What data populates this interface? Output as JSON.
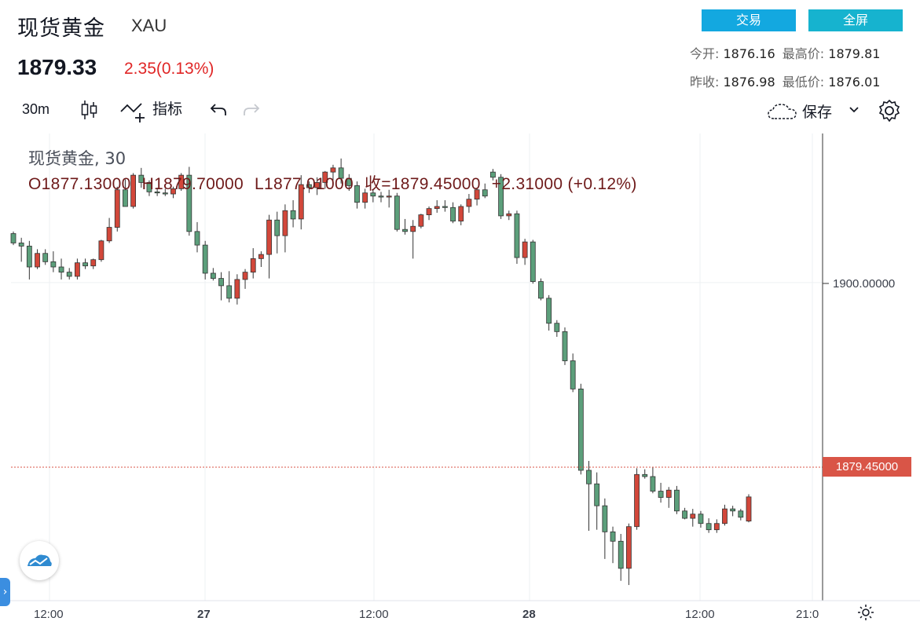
{
  "header": {
    "title": "现货黄金",
    "symbol": "XAU",
    "price": "1879.33",
    "change": "2.35(0.13%)",
    "trade_button": "交易",
    "fullscreen_button": "全屏",
    "open_label": "今开:",
    "open_value": "1876.16",
    "high_label": "最高价:",
    "high_value": "1879.81",
    "prev_close_label": "昨收:",
    "prev_close_value": "1876.98",
    "low_label": "最低价:",
    "low_value": "1876.01"
  },
  "toolbar": {
    "interval": "30m",
    "indicators_label": "指标",
    "save_label": "保存",
    "icons": [
      "candles-icon",
      "indicators-icon",
      "undo-icon",
      "redo-icon",
      "cloud-icon",
      "chevron-down-icon",
      "gear-icon"
    ]
  },
  "legend": {
    "series_label": "现货黄金, 30",
    "open": "O1877.13000",
    "high": "H1879.70000",
    "low": "L1877.01000",
    "close": "收=1879.45000",
    "change": "+2.31000 (+0.12%)"
  },
  "colors": {
    "up": "#d2473a",
    "down": "#5c9f7b",
    "accent": "#13a8e0",
    "last_price": "#d95547"
  },
  "chart_data": {
    "type": "candlestick",
    "y_tick": "1900.00000",
    "y_tick_value": 1900,
    "last_price_label": "1879.45000",
    "last_price": 1879.45,
    "ylim": [
      1869.5,
      1914.3
    ],
    "x_ticks": [
      "12:00",
      "27",
      "12:00",
      "28",
      "12:00",
      "21:0"
    ],
    "grid": true,
    "candles": [
      [
        1904.7,
        1904.9,
        1903.6,
        1903.8
      ],
      [
        1903.8,
        1904.3,
        1902.0,
        1903.5
      ],
      [
        1903.5,
        1904.0,
        1900.3,
        1901.5
      ],
      [
        1901.5,
        1903.2,
        1901.3,
        1902.8
      ],
      [
        1902.8,
        1903.2,
        1901.7,
        1902.0
      ],
      [
        1902.0,
        1903.0,
        1901.0,
        1901.5
      ],
      [
        1901.5,
        1902.3,
        1900.3,
        1901.0
      ],
      [
        1901.0,
        1901.4,
        1900.3,
        1900.6
      ],
      [
        1900.6,
        1902.3,
        1900.3,
        1901.9
      ],
      [
        1901.9,
        1902.3,
        1901.3,
        1901.6
      ],
      [
        1901.6,
        1902.3,
        1901.3,
        1902.2
      ],
      [
        1902.2,
        1904.1,
        1902.0,
        1904.0
      ],
      [
        1904.0,
        1906.2,
        1903.8,
        1905.3
      ],
      [
        1905.3,
        1909.2,
        1904.9,
        1908.9
      ],
      [
        1908.9,
        1909.9,
        1907.3,
        1907.3
      ],
      [
        1907.3,
        1910.5,
        1907.1,
        1910.3
      ],
      [
        1910.3,
        1911.0,
        1909.1,
        1909.6
      ],
      [
        1909.6,
        1909.8,
        1908.3,
        1908.7
      ],
      [
        1908.7,
        1909.1,
        1908.3,
        1908.6
      ],
      [
        1908.6,
        1909.0,
        1908.3,
        1908.5
      ],
      [
        1908.5,
        1909.2,
        1908.1,
        1909.0
      ],
      [
        1909.0,
        1910.5,
        1908.8,
        1910.3
      ],
      [
        1910.3,
        1911.1,
        1904.5,
        1904.9
      ],
      [
        1904.9,
        1905.8,
        1902.9,
        1903.6
      ],
      [
        1903.6,
        1904.0,
        1900.3,
        1900.9
      ],
      [
        1900.9,
        1901.4,
        1900.2,
        1900.4
      ],
      [
        1900.4,
        1901.0,
        1898.3,
        1899.7
      ],
      [
        1899.7,
        1901.1,
        1898.1,
        1898.5
      ],
      [
        1898.5,
        1900.8,
        1897.9,
        1900.3
      ],
      [
        1900.3,
        1901.3,
        1899.4,
        1901.0
      ],
      [
        1901.0,
        1903.3,
        1900.4,
        1902.3
      ],
      [
        1902.3,
        1903.0,
        1901.5,
        1902.7
      ],
      [
        1902.7,
        1906.5,
        1900.4,
        1906.0
      ],
      [
        1906.0,
        1906.8,
        1902.8,
        1904.5
      ],
      [
        1904.5,
        1907.5,
        1902.9,
        1906.9
      ],
      [
        1906.9,
        1907.9,
        1905.3,
        1906.1
      ],
      [
        1906.1,
        1910.3,
        1905.1,
        1909.4
      ],
      [
        1909.4,
        1909.7,
        1908.6,
        1909.1
      ],
      [
        1909.1,
        1910.1,
        1908.4,
        1909.6
      ],
      [
        1909.6,
        1910.7,
        1909.0,
        1910.6
      ],
      [
        1910.6,
        1911.3,
        1909.8,
        1911.0
      ],
      [
        1911.0,
        1911.9,
        1909.5,
        1910.0
      ],
      [
        1910.0,
        1910.4,
        1908.8,
        1909.3
      ],
      [
        1909.3,
        1909.7,
        1907.1,
        1907.7
      ],
      [
        1907.7,
        1909.0,
        1907.1,
        1908.6
      ],
      [
        1908.6,
        1908.9,
        1907.7,
        1908.3
      ],
      [
        1908.3,
        1908.7,
        1907.7,
        1908.2
      ],
      [
        1908.2,
        1908.9,
        1907.2,
        1908.3
      ],
      [
        1908.3,
        1908.6,
        1904.9,
        1905.1
      ],
      [
        1905.1,
        1906.1,
        1904.6,
        1904.9
      ],
      [
        1904.9,
        1906.0,
        1902.3,
        1905.4
      ],
      [
        1905.4,
        1906.6,
        1905.2,
        1906.5
      ],
      [
        1906.5,
        1907.3,
        1906.0,
        1907.1
      ],
      [
        1907.1,
        1907.9,
        1906.7,
        1907.3
      ],
      [
        1907.3,
        1907.9,
        1906.8,
        1907.2
      ],
      [
        1907.2,
        1907.7,
        1905.7,
        1905.9
      ],
      [
        1905.9,
        1907.5,
        1905.5,
        1907.3
      ],
      [
        1907.3,
        1908.5,
        1906.7,
        1908.0
      ],
      [
        1908.0,
        1909.0,
        1907.4,
        1908.9
      ],
      [
        1908.9,
        1909.5,
        1908.1,
        1908.3
      ],
      [
        1910.6,
        1910.9,
        1909.8,
        1910.1
      ],
      [
        1910.1,
        1910.4,
        1906.1,
        1906.4
      ],
      [
        1906.4,
        1906.9,
        1906.0,
        1906.6
      ],
      [
        1906.6,
        1906.9,
        1901.8,
        1902.4
      ],
      [
        1902.4,
        1904.2,
        1901.7,
        1903.9
      ],
      [
        1903.9,
        1904.1,
        1899.9,
        1900.1
      ],
      [
        1900.1,
        1900.4,
        1898.3,
        1898.5
      ],
      [
        1898.5,
        1898.8,
        1895.4,
        1896.1
      ],
      [
        1896.1,
        1896.4,
        1894.8,
        1895.3
      ],
      [
        1895.3,
        1895.7,
        1892.1,
        1892.5
      ],
      [
        1892.5,
        1893.2,
        1889.5,
        1889.8
      ],
      [
        1889.8,
        1890.3,
        1881.6,
        1882.0
      ],
      [
        1882.0,
        1882.9,
        1876.2,
        1880.7
      ],
      [
        1880.7,
        1881.8,
        1876.3,
        1878.6
      ],
      [
        1878.6,
        1879.3,
        1873.5,
        1876.1
      ],
      [
        1876.1,
        1876.6,
        1873.1,
        1875.2
      ],
      [
        1875.2,
        1875.9,
        1871.4,
        1872.6
      ],
      [
        1872.6,
        1876.9,
        1871.0,
        1876.6
      ],
      [
        1876.6,
        1882.2,
        1876.3,
        1881.6
      ],
      [
        1881.6,
        1882.1,
        1881.2,
        1881.4
      ],
      [
        1881.4,
        1882.3,
        1879.8,
        1880.0
      ],
      [
        1880.0,
        1880.8,
        1878.9,
        1879.4
      ],
      [
        1879.4,
        1880.4,
        1878.4,
        1880.1
      ],
      [
        1880.1,
        1880.5,
        1877.8,
        1878.1
      ],
      [
        1878.1,
        1878.4,
        1877.3,
        1877.4
      ],
      [
        1877.4,
        1878.3,
        1876.6,
        1877.8
      ],
      [
        1877.8,
        1878.1,
        1876.5,
        1876.9
      ],
      [
        1876.9,
        1877.4,
        1876.0,
        1876.3
      ],
      [
        1876.3,
        1877.3,
        1876.0,
        1876.9
      ],
      [
        1876.9,
        1878.7,
        1876.7,
        1878.3
      ],
      [
        1878.3,
        1878.6,
        1877.6,
        1878.1
      ],
      [
        1878.1,
        1878.3,
        1877.2,
        1877.5
      ],
      [
        1877.13,
        1879.7,
        1877.01,
        1879.45
      ]
    ]
  }
}
